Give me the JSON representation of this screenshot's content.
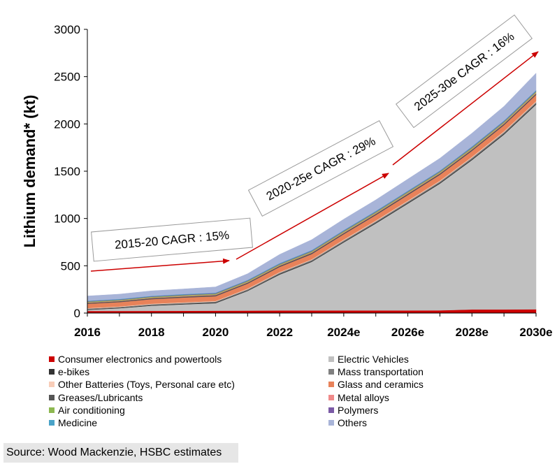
{
  "chart_data": {
    "type": "area",
    "stacked": true,
    "ylabel": "Lithium demand* (kt)",
    "xlabel": "",
    "ylim": [
      0,
      3000
    ],
    "yticks": [
      0,
      500,
      1000,
      1500,
      2000,
      2500,
      3000
    ],
    "x": [
      2016,
      2017,
      2018,
      2019,
      2020,
      2021,
      2022,
      2023,
      2024,
      2025,
      2026,
      2027,
      2028,
      2029,
      2030
    ],
    "xtick_values": [
      2016,
      2018,
      2020,
      2022,
      2024,
      2026,
      2028,
      2030
    ],
    "xtick_labels": [
      "2016",
      "2018",
      "2020",
      "2022",
      "2024e",
      "2026e",
      "2028e",
      "2030e"
    ],
    "series": [
      {
        "name": "Consumer electronics and powertools",
        "color": "#cc0000",
        "values": [
          22,
          22,
          23,
          24,
          25,
          26,
          27,
          27,
          28,
          28,
          28,
          29,
          38,
          38,
          40
        ]
      },
      {
        "name": "Electric Vehicles",
        "color": "#c0c0c0",
        "values": [
          13,
          30,
          55,
          68,
          80,
          208,
          380,
          515,
          720,
          920,
          1130,
          1340,
          1580,
          1850,
          2165
        ]
      },
      {
        "name": "e-bikes",
        "color": "#333333",
        "values": [
          5,
          5,
          6,
          6,
          7,
          7,
          8,
          8,
          8,
          9,
          9,
          9,
          10,
          10,
          10
        ]
      },
      {
        "name": "Mass transportation",
        "color": "#808080",
        "values": [
          8,
          8,
          9,
          10,
          10,
          11,
          12,
          12,
          13,
          13,
          14,
          14,
          15,
          15,
          16
        ]
      },
      {
        "name": "Other Batteries (Toys, Personal care etc)",
        "color": "#f8cdb8",
        "values": [
          5,
          5,
          6,
          6,
          6,
          7,
          7,
          7,
          8,
          8,
          8,
          8,
          9,
          9,
          9
        ]
      },
      {
        "name": "Glass and ceramics",
        "color": "#e8825a",
        "values": [
          45,
          46,
          48,
          50,
          50,
          52,
          54,
          55,
          57,
          58,
          60,
          62,
          63,
          65,
          67
        ]
      },
      {
        "name": "Greases/Lubricants",
        "color": "#555555",
        "values": [
          10,
          10,
          11,
          11,
          12,
          12,
          12,
          13,
          13,
          13,
          14,
          14,
          14,
          15,
          15
        ]
      },
      {
        "name": "Metal alloys",
        "color": "#f08a8a",
        "values": [
          5,
          5,
          5,
          6,
          6,
          6,
          6,
          6,
          7,
          7,
          7,
          7,
          7,
          7,
          8
        ]
      },
      {
        "name": "Air conditioning",
        "color": "#8db850",
        "values": [
          8,
          8,
          9,
          9,
          9,
          10,
          10,
          10,
          11,
          11,
          11,
          11,
          12,
          12,
          12
        ]
      },
      {
        "name": "Polymers",
        "color": "#7b5aa6",
        "values": [
          5,
          5,
          5,
          6,
          6,
          6,
          6,
          7,
          7,
          7,
          7,
          7,
          8,
          8,
          8
        ]
      },
      {
        "name": "Medicine",
        "color": "#4aa3c8",
        "values": [
          5,
          5,
          5,
          5,
          5,
          5,
          6,
          6,
          6,
          6,
          6,
          6,
          6,
          7,
          7
        ]
      },
      {
        "name": "Others",
        "color": "#a8b4d8",
        "values": [
          49,
          51,
          53,
          54,
          60,
          66,
          92,
          110,
          115,
          117,
          123,
          130,
          140,
          150,
          180
        ]
      }
    ],
    "annotations": [
      {
        "text": "2015-20 CAGR : 15%"
      },
      {
        "text": "2020-25e CAGR : 29%"
      },
      {
        "text": "2025-30e CAGR : 16%"
      }
    ],
    "source": "Source: Wood Mackenzie, HSBC estimates"
  }
}
